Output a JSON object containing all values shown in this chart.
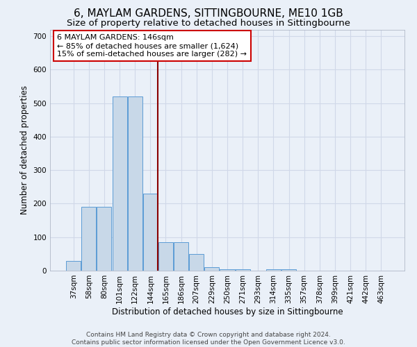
{
  "title": "6, MAYLAM GARDENS, SITTINGBOURNE, ME10 1GB",
  "subtitle": "Size of property relative to detached houses in Sittingbourne",
  "xlabel": "Distribution of detached houses by size in Sittingbourne",
  "ylabel": "Number of detached properties",
  "categories": [
    "37sqm",
    "58sqm",
    "80sqm",
    "101sqm",
    "122sqm",
    "144sqm",
    "165sqm",
    "186sqm",
    "207sqm",
    "229sqm",
    "250sqm",
    "271sqm",
    "293sqm",
    "314sqm",
    "335sqm",
    "357sqm",
    "378sqm",
    "399sqm",
    "421sqm",
    "442sqm",
    "463sqm"
  ],
  "values": [
    30,
    190,
    190,
    520,
    520,
    230,
    85,
    85,
    50,
    10,
    5,
    5,
    0,
    5,
    5,
    0,
    0,
    0,
    0,
    0,
    0
  ],
  "bar_color": "#c8d8e8",
  "bar_edge_color": "#5b9bd5",
  "background_color": "#eaf0f8",
  "grid_color": "#d0d8e8",
  "vline_x_index": 5.5,
  "vline_color": "#8b0000",
  "annotation_box_text": "6 MAYLAM GARDENS: 146sqm\n← 85% of detached houses are smaller (1,624)\n15% of semi-detached houses are larger (282) →",
  "annotation_fontsize": 8,
  "title_fontsize": 11,
  "subtitle_fontsize": 9.5,
  "xlabel_fontsize": 8.5,
  "ylabel_fontsize": 8.5,
  "tick_fontsize": 7.5,
  "footer_text": "Contains HM Land Registry data © Crown copyright and database right 2024.\nContains public sector information licensed under the Open Government Licence v3.0.",
  "ylim": [
    0,
    720
  ],
  "yticks": [
    0,
    100,
    200,
    300,
    400,
    500,
    600,
    700
  ]
}
